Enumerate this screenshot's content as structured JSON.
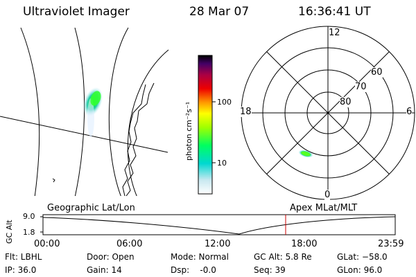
{
  "header": {
    "instrument": "Ultraviolet Imager",
    "date": "28 Mar 07",
    "time": "16:36:41 UT"
  },
  "colorbar": {
    "unit_label": "photon cm⁻²s⁻¹",
    "ticks": [
      "100",
      "10"
    ]
  },
  "polar_plot": {
    "mlt_labels": {
      "top": "12",
      "left": "18",
      "right": "6",
      "bottom": "0"
    },
    "lat_labels": [
      "60",
      "70",
      "80"
    ]
  },
  "timeline": {
    "left_label": "Geographic Lat/Lon",
    "right_label": "Apex MLat/MLT",
    "axis_label": "GC Alt",
    "y_ticks": [
      "9.0",
      "1.8"
    ],
    "x_ticks": [
      "00:00",
      "06:00",
      "12:00",
      "18:00",
      "23:59"
    ],
    "colors": {
      "marker": "#cc0000"
    }
  },
  "info_panel": {
    "flt": "Flt: LBHL",
    "ip": "IP: 36.0",
    "door": "Door: Open",
    "gain": "Gain: 14",
    "mode": "Mode: Normal",
    "dsp": "Dsp:    -0.0",
    "gc_alt": "GC Alt: 5.8 Re",
    "seq": "Seq: 39",
    "glat": "GLat: −58.0",
    "glon": "GLon: 96.0"
  }
}
